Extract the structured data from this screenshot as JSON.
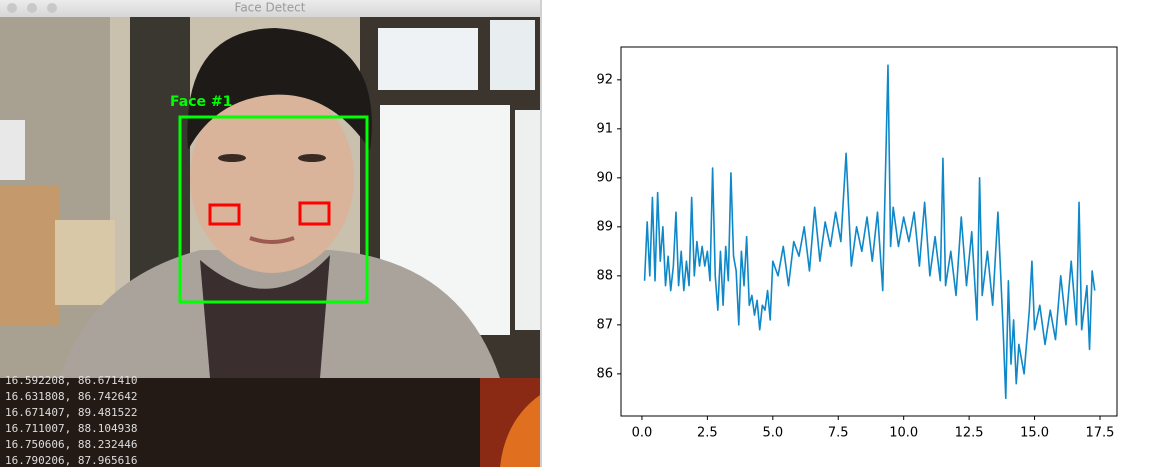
{
  "window": {
    "title": "Face Detect",
    "face_label": "Face #1"
  },
  "terminal": {
    "lines": [
      "16.592208, 86.671410",
      "16.631808, 86.742642",
      "16.671407, 89.481522",
      "16.711007, 88.104938",
      "16.750606, 88.232446",
      "16.790206, 87.965616"
    ]
  },
  "chart_data": {
    "type": "line",
    "x": [
      0.1,
      0.2,
      0.3,
      0.4,
      0.5,
      0.6,
      0.7,
      0.8,
      0.9,
      1.0,
      1.1,
      1.2,
      1.3,
      1.4,
      1.5,
      1.6,
      1.7,
      1.8,
      1.9,
      2.0,
      2.1,
      2.2,
      2.3,
      2.4,
      2.5,
      2.6,
      2.7,
      2.8,
      2.9,
      3.0,
      3.1,
      3.2,
      3.3,
      3.4,
      3.5,
      3.6,
      3.7,
      3.8,
      3.9,
      4.0,
      4.1,
      4.2,
      4.3,
      4.4,
      4.5,
      4.6,
      4.7,
      4.8,
      4.9,
      5.0,
      5.2,
      5.4,
      5.6,
      5.8,
      6.0,
      6.2,
      6.4,
      6.6,
      6.8,
      7.0,
      7.2,
      7.4,
      7.6,
      7.8,
      8.0,
      8.2,
      8.4,
      8.6,
      8.8,
      9.0,
      9.2,
      9.4,
      9.5,
      9.6,
      9.8,
      10.0,
      10.2,
      10.4,
      10.6,
      10.8,
      11.0,
      11.2,
      11.4,
      11.5,
      11.6,
      11.8,
      12.0,
      12.2,
      12.4,
      12.6,
      12.8,
      12.9,
      13.0,
      13.2,
      13.4,
      13.6,
      13.8,
      13.9,
      14.0,
      14.1,
      14.2,
      14.3,
      14.4,
      14.6,
      14.8,
      14.9,
      15.0,
      15.2,
      15.4,
      15.6,
      15.8,
      16.0,
      16.2,
      16.4,
      16.6,
      16.7,
      16.8,
      17.0,
      17.1,
      17.2,
      17.3
    ],
    "series": [
      {
        "color": "#0e88c8",
        "values": [
          87.9,
          89.1,
          88.0,
          89.6,
          87.9,
          89.7,
          88.3,
          89.0,
          87.8,
          88.4,
          87.7,
          88.2,
          89.3,
          87.8,
          88.5,
          87.7,
          88.3,
          87.8,
          89.6,
          88.0,
          88.7,
          88.2,
          88.6,
          88.2,
          88.5,
          87.9,
          90.2,
          88.0,
          87.3,
          88.5,
          87.4,
          88.6,
          87.9,
          90.1,
          88.4,
          88.1,
          87.0,
          88.5,
          87.8,
          88.8,
          87.4,
          87.6,
          87.2,
          87.5,
          86.9,
          87.4,
          87.3,
          87.7,
          87.1,
          88.3,
          88.0,
          88.6,
          87.8,
          88.7,
          88.4,
          89.0,
          88.1,
          89.4,
          88.3,
          89.1,
          88.6,
          89.3,
          88.7,
          90.5,
          88.2,
          89.0,
          88.5,
          89.2,
          88.3,
          89.3,
          87.7,
          92.3,
          88.6,
          89.4,
          88.6,
          89.2,
          88.7,
          89.3,
          88.2,
          89.5,
          88.0,
          88.8,
          87.9,
          90.4,
          87.8,
          88.5,
          87.6,
          89.2,
          87.8,
          88.9,
          87.1,
          90.0,
          87.6,
          88.5,
          87.4,
          89.3,
          86.9,
          85.5,
          87.9,
          86.2,
          87.1,
          85.8,
          86.6,
          86.0,
          87.3,
          88.3,
          86.9,
          87.4,
          86.6,
          87.3,
          86.7,
          88.0,
          87.0,
          88.3,
          87.0,
          89.5,
          86.9,
          87.8,
          86.5,
          88.1,
          87.7
        ]
      }
    ],
    "xlim": [
      -0.8,
      18.15
    ],
    "ylim": [
      85.14,
      92.67
    ],
    "xticks": [
      {
        "value": 0,
        "label": "0.0"
      },
      2.5,
      {
        "value": 5,
        "label": "5.0"
      },
      7.5,
      {
        "value": 10,
        "label": "10.0"
      },
      12.5,
      {
        "value": 15,
        "label": "15.0"
      },
      17.5
    ],
    "yticks": [
      86,
      87,
      88,
      89,
      90,
      91,
      92
    ]
  }
}
